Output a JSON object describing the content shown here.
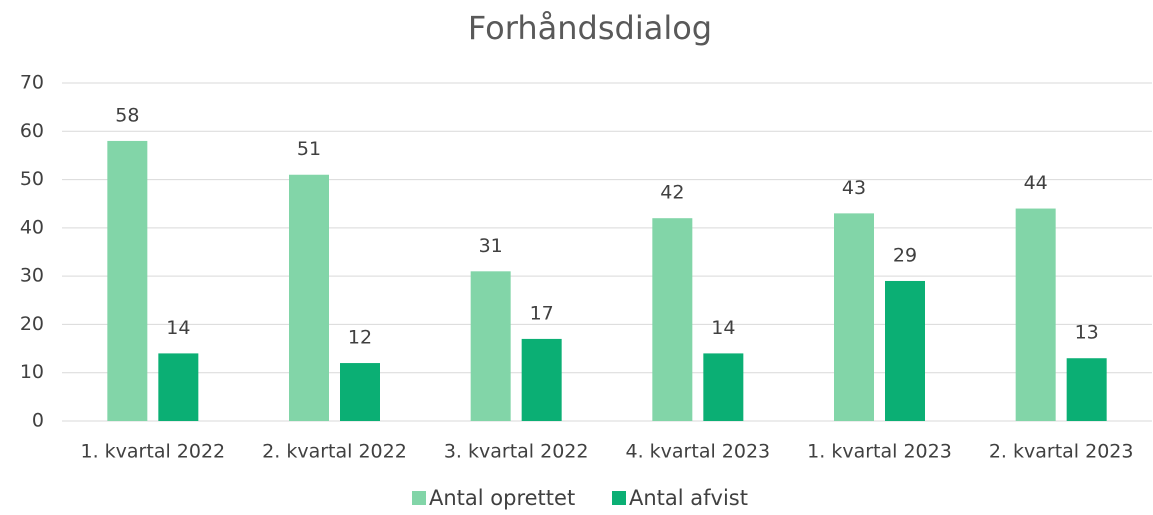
{
  "chart_data": {
    "type": "bar",
    "title": "Forhåndsdialog",
    "categories": [
      "1. kvartal 2022",
      "2. kvartal 2022",
      "3. kvartal 2022",
      "4. kvartal 2023",
      "1. kvartal 2023",
      "2. kvartal 2023"
    ],
    "series": [
      {
        "name": "Antal oprettet",
        "color": "#82d5a8",
        "values": [
          58,
          51,
          31,
          42,
          43,
          44
        ]
      },
      {
        "name": "Antal afvist",
        "color": "#0baf74",
        "values": [
          14,
          12,
          17,
          14,
          29,
          13
        ]
      }
    ],
    "ylim": [
      0,
      70
    ],
    "yticks": [
      0,
      10,
      20,
      30,
      40,
      50,
      60,
      70
    ],
    "grid": true,
    "legend": "bottom"
  }
}
